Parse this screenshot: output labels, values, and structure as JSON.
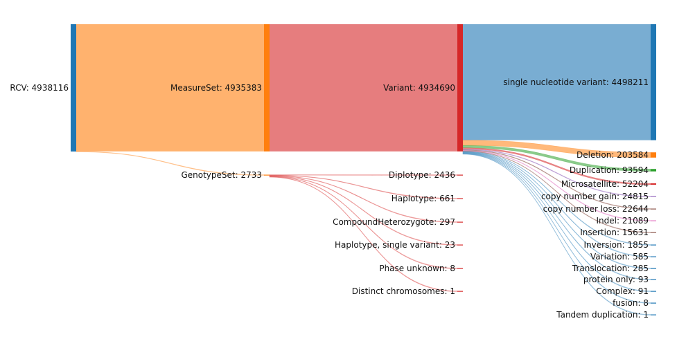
{
  "chart_data": {
    "type": "sankey",
    "title": "",
    "colors": {
      "blue": "#1f77b4",
      "orange": "#ff7f0e",
      "green": "#2ca02c",
      "red": "#d62728",
      "purple": "#9467bd",
      "brown": "#8c564b",
      "pink": "#e377c2"
    },
    "columns": [
      {
        "color": "blue",
        "nodes": [
          {
            "name": "RCV",
            "value": 4938116,
            "label": "RCV: 4938116"
          }
        ]
      },
      {
        "color": "orange",
        "nodes": [
          {
            "name": "MeasureSet",
            "value": 4935383,
            "label": "MeasureSet: 4935383"
          },
          {
            "name": "GenotypeSet",
            "value": 2733,
            "label": "GenotypeSet: 2733"
          }
        ]
      },
      {
        "color": "red",
        "nodes": [
          {
            "name": "Variant",
            "value": 4934690,
            "label": "Variant: 4934690"
          },
          {
            "name": "Diplotype",
            "value": 2436,
            "label": "Diplotype: 2436"
          },
          {
            "name": "Haplotype",
            "value": 661,
            "label": "Haplotype: 661"
          },
          {
            "name": "CompoundHeterozygote",
            "value": 297,
            "label": "CompoundHeterozygote: 297"
          },
          {
            "name": "Haplotype, single variant",
            "value": 23,
            "label": "Haplotype, single variant: 23"
          },
          {
            "name": "Phase unknown",
            "value": 8,
            "label": "Phase unknown: 8"
          },
          {
            "name": "Distinct chromosomes",
            "value": 1,
            "label": "Distinct chromosomes: 1"
          }
        ]
      },
      {
        "color": "mixed",
        "nodes": [
          {
            "name": "single nucleotide variant",
            "value": 4498211,
            "label": "single nucleotide variant: 4498211",
            "color": "blue"
          },
          {
            "name": "Deletion",
            "value": 203584,
            "label": "Deletion: 203584",
            "color": "orange"
          },
          {
            "name": "Duplication",
            "value": 93594,
            "label": "Duplication: 93594",
            "color": "green"
          },
          {
            "name": "Microsatellite",
            "value": 52204,
            "label": "Microsatellite: 52204",
            "color": "red"
          },
          {
            "name": "copy number gain",
            "value": 24815,
            "label": "copy number gain: 24815",
            "color": "purple"
          },
          {
            "name": "copy number loss",
            "value": 22644,
            "label": "copy number loss: 22644",
            "color": "brown"
          },
          {
            "name": "Indel",
            "value": 21089,
            "label": "Indel: 21089",
            "color": "pink"
          },
          {
            "name": "Insertion",
            "value": 15631,
            "label": "Insertion: 15631",
            "color": "brown"
          },
          {
            "name": "Inversion",
            "value": 1855,
            "label": "Inversion: 1855",
            "color": "blue"
          },
          {
            "name": "Variation",
            "value": 585,
            "label": "Variation: 585",
            "color": "blue"
          },
          {
            "name": "Translocation",
            "value": 285,
            "label": "Translocation: 285",
            "color": "blue"
          },
          {
            "name": "protein only",
            "value": 93,
            "label": "protein only: 93",
            "color": "blue"
          },
          {
            "name": "Complex",
            "value": 91,
            "label": "Complex: 91",
            "color": "blue"
          },
          {
            "name": "fusion",
            "value": 8,
            "label": "fusion: 8",
            "color": "blue"
          },
          {
            "name": "Tandem duplication",
            "value": 1,
            "label": "Tandem duplication: 1",
            "color": "blue"
          }
        ]
      }
    ],
    "links": [
      {
        "source": "RCV",
        "target": "MeasureSet",
        "value": 4935383
      },
      {
        "source": "RCV",
        "target": "GenotypeSet",
        "value": 2733
      },
      {
        "source": "MeasureSet",
        "target": "Variant",
        "value": 4934690
      },
      {
        "source": "GenotypeSet",
        "target": "Diplotype",
        "value": 2436
      },
      {
        "source": "GenotypeSet",
        "target": "Haplotype",
        "value": 661
      },
      {
        "source": "GenotypeSet",
        "target": "CompoundHeterozygote",
        "value": 297
      },
      {
        "source": "GenotypeSet",
        "target": "Haplotype, single variant",
        "value": 23
      },
      {
        "source": "GenotypeSet",
        "target": "Phase unknown",
        "value": 8
      },
      {
        "source": "GenotypeSet",
        "target": "Distinct chromosomes",
        "value": 1
      },
      {
        "source": "Variant",
        "target": "single nucleotide variant",
        "value": 4498211
      },
      {
        "source": "Variant",
        "target": "Deletion",
        "value": 203584
      },
      {
        "source": "Variant",
        "target": "Duplication",
        "value": 93594
      },
      {
        "source": "Variant",
        "target": "Microsatellite",
        "value": 52204
      },
      {
        "source": "Variant",
        "target": "copy number gain",
        "value": 24815
      },
      {
        "source": "Variant",
        "target": "copy number loss",
        "value": 22644
      },
      {
        "source": "Variant",
        "target": "Indel",
        "value": 21089
      },
      {
        "source": "Variant",
        "target": "Insertion",
        "value": 15631
      },
      {
        "source": "Variant",
        "target": "Inversion",
        "value": 1855
      },
      {
        "source": "Variant",
        "target": "Variation",
        "value": 585
      },
      {
        "source": "Variant",
        "target": "Translocation",
        "value": 285
      },
      {
        "source": "Variant",
        "target": "protein only",
        "value": 93
      },
      {
        "source": "Variant",
        "target": "Complex",
        "value": 91
      },
      {
        "source": "Variant",
        "target": "fusion",
        "value": 8
      },
      {
        "source": "Variant",
        "target": "Tandem duplication",
        "value": 1
      }
    ]
  }
}
